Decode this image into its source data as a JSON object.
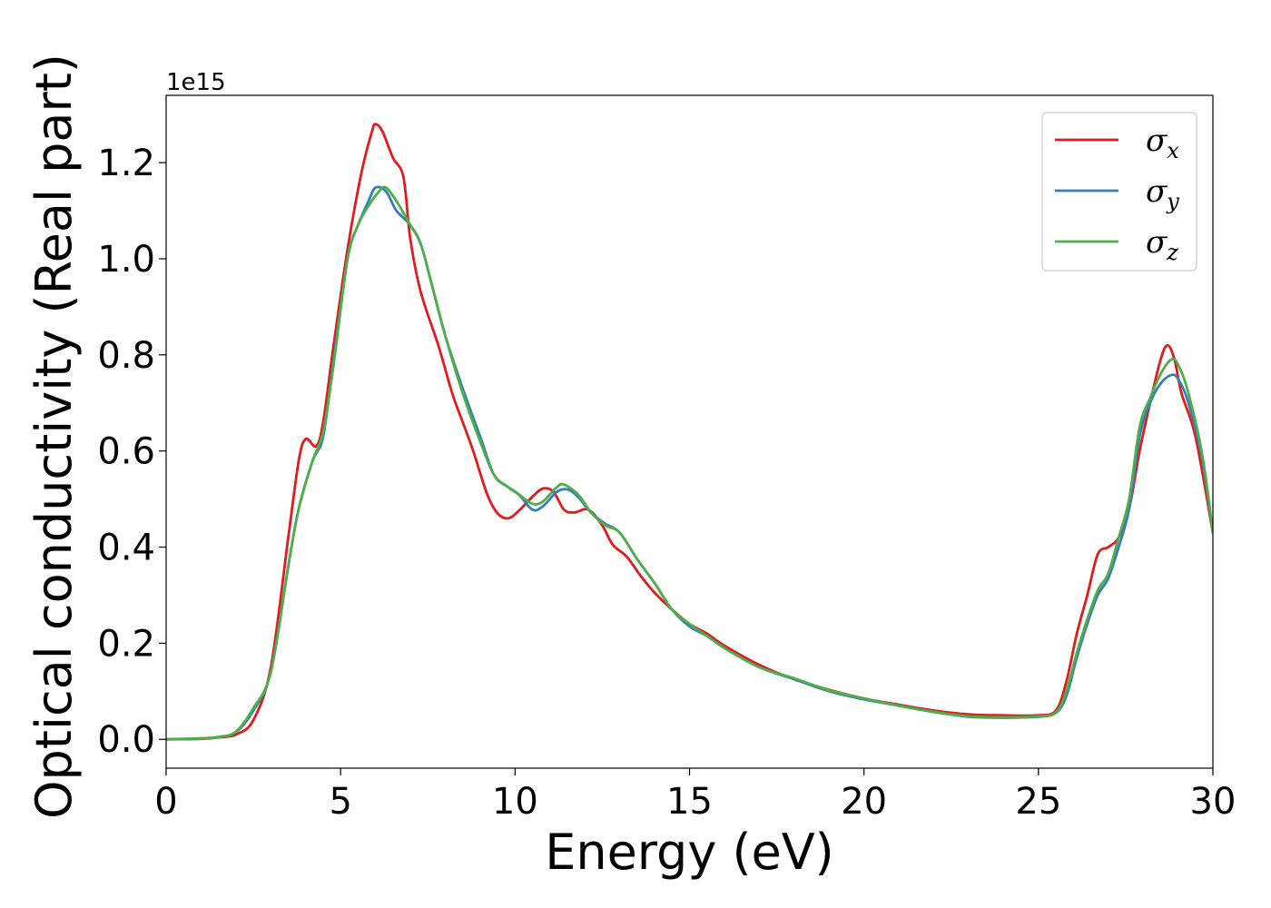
{
  "chart_data": {
    "type": "line",
    "xlabel": "Energy (eV)",
    "ylabel": "Optical conductivity (Real part)",
    "y_offset_label": "1e15",
    "xlim": [
      0,
      30
    ],
    "ylim": [
      -0.06,
      1.34
    ],
    "xticks": [
      0,
      5,
      10,
      15,
      20,
      25,
      30
    ],
    "xtick_labels": [
      "0",
      "5",
      "10",
      "15",
      "20",
      "25",
      "30"
    ],
    "yticks": [
      0.0,
      0.2,
      0.4,
      0.6,
      0.8,
      1.0,
      1.2
    ],
    "ytick_labels": [
      "0.0",
      "0.2",
      "0.4",
      "0.6",
      "0.8",
      "1.0",
      "1.2"
    ],
    "grid": false,
    "legend_position": "top-right",
    "series": [
      {
        "name": "σx",
        "name_base": "σ",
        "name_sub": "x",
        "color": "#e41a1c",
        "points": [
          [
            0,
            0
          ],
          [
            1,
            0.001
          ],
          [
            1.5,
            0.004
          ],
          [
            2,
            0.01
          ],
          [
            2.5,
            0.04
          ],
          [
            3,
            0.15
          ],
          [
            3.5,
            0.42
          ],
          [
            3.8,
            0.58
          ],
          [
            4.0,
            0.625
          ],
          [
            4.3,
            0.61
          ],
          [
            4.5,
            0.66
          ],
          [
            4.8,
            0.82
          ],
          [
            5.2,
            1.02
          ],
          [
            5.6,
            1.18
          ],
          [
            5.9,
            1.265
          ],
          [
            6.0,
            1.28
          ],
          [
            6.2,
            1.265
          ],
          [
            6.5,
            1.21
          ],
          [
            6.8,
            1.17
          ],
          [
            7.0,
            1.04
          ],
          [
            7.3,
            0.93
          ],
          [
            7.8,
            0.82
          ],
          [
            8.2,
            0.72
          ],
          [
            8.5,
            0.66
          ],
          [
            8.8,
            0.6
          ],
          [
            9.2,
            0.51
          ],
          [
            9.5,
            0.47
          ],
          [
            9.8,
            0.46
          ],
          [
            10.1,
            0.475
          ],
          [
            10.5,
            0.505
          ],
          [
            10.8,
            0.522
          ],
          [
            11.1,
            0.515
          ],
          [
            11.4,
            0.478
          ],
          [
            11.7,
            0.472
          ],
          [
            12.1,
            0.478
          ],
          [
            12.5,
            0.445
          ],
          [
            12.8,
            0.405
          ],
          [
            13.2,
            0.38
          ],
          [
            13.6,
            0.34
          ],
          [
            14.0,
            0.305
          ],
          [
            14.5,
            0.27
          ],
          [
            15.0,
            0.24
          ],
          [
            15.5,
            0.22
          ],
          [
            16.0,
            0.195
          ],
          [
            17.0,
            0.155
          ],
          [
            18.0,
            0.125
          ],
          [
            19.0,
            0.103
          ],
          [
            20.0,
            0.085
          ],
          [
            21.0,
            0.072
          ],
          [
            22.0,
            0.06
          ],
          [
            23.0,
            0.052
          ],
          [
            24.0,
            0.05
          ],
          [
            25.0,
            0.05
          ],
          [
            25.5,
            0.06
          ],
          [
            25.8,
            0.12
          ],
          [
            26.1,
            0.22
          ],
          [
            26.4,
            0.3
          ],
          [
            26.7,
            0.385
          ],
          [
            27.0,
            0.4
          ],
          [
            27.3,
            0.42
          ],
          [
            27.6,
            0.48
          ],
          [
            27.9,
            0.6
          ],
          [
            28.2,
            0.7
          ],
          [
            28.5,
            0.79
          ],
          [
            28.7,
            0.82
          ],
          [
            28.9,
            0.79
          ],
          [
            29.1,
            0.72
          ],
          [
            29.5,
            0.63
          ],
          [
            30.0,
            0.43
          ]
        ]
      },
      {
        "name": "σy",
        "name_base": "σ",
        "name_sub": "y",
        "color": "#377eb8",
        "points": [
          [
            0,
            0
          ],
          [
            1,
            0.002
          ],
          [
            1.5,
            0.005
          ],
          [
            2,
            0.015
          ],
          [
            2.5,
            0.06
          ],
          [
            3,
            0.14
          ],
          [
            3.5,
            0.36
          ],
          [
            3.8,
            0.48
          ],
          [
            4.2,
            0.58
          ],
          [
            4.5,
            0.63
          ],
          [
            4.8,
            0.79
          ],
          [
            5.2,
            1.0
          ],
          [
            5.5,
            1.07
          ],
          [
            5.8,
            1.12
          ],
          [
            6.0,
            1.148
          ],
          [
            6.3,
            1.14
          ],
          [
            6.6,
            1.1
          ],
          [
            7.0,
            1.07
          ],
          [
            7.3,
            1.03
          ],
          [
            7.6,
            0.95
          ],
          [
            8.0,
            0.84
          ],
          [
            8.5,
            0.73
          ],
          [
            9.0,
            0.63
          ],
          [
            9.4,
            0.55
          ],
          [
            9.8,
            0.525
          ],
          [
            10.1,
            0.51
          ],
          [
            10.5,
            0.478
          ],
          [
            10.8,
            0.485
          ],
          [
            11.2,
            0.515
          ],
          [
            11.5,
            0.52
          ],
          [
            11.8,
            0.505
          ],
          [
            12.2,
            0.47
          ],
          [
            12.6,
            0.448
          ],
          [
            13.0,
            0.43
          ],
          [
            13.5,
            0.375
          ],
          [
            14.0,
            0.325
          ],
          [
            14.5,
            0.27
          ],
          [
            15.0,
            0.235
          ],
          [
            15.5,
            0.215
          ],
          [
            16.0,
            0.19
          ],
          [
            17.0,
            0.15
          ],
          [
            18.0,
            0.125
          ],
          [
            19.0,
            0.1
          ],
          [
            20.0,
            0.083
          ],
          [
            21.0,
            0.07
          ],
          [
            22.0,
            0.057
          ],
          [
            23.0,
            0.047
          ],
          [
            24.0,
            0.045
          ],
          [
            25.0,
            0.047
          ],
          [
            25.5,
            0.055
          ],
          [
            25.8,
            0.09
          ],
          [
            26.1,
            0.17
          ],
          [
            26.4,
            0.24
          ],
          [
            26.7,
            0.3
          ],
          [
            27.0,
            0.335
          ],
          [
            27.3,
            0.4
          ],
          [
            27.6,
            0.48
          ],
          [
            27.9,
            0.63
          ],
          [
            28.2,
            0.7
          ],
          [
            28.5,
            0.74
          ],
          [
            28.8,
            0.758
          ],
          [
            29.0,
            0.75
          ],
          [
            29.3,
            0.7
          ],
          [
            29.7,
            0.58
          ],
          [
            30.0,
            0.43
          ]
        ]
      },
      {
        "name": "σz",
        "name_base": "σ",
        "name_sub": "z",
        "color": "#4daf4a",
        "points": [
          [
            0,
            0
          ],
          [
            1,
            0.002
          ],
          [
            1.5,
            0.005
          ],
          [
            2,
            0.016
          ],
          [
            2.5,
            0.065
          ],
          [
            3,
            0.14
          ],
          [
            3.5,
            0.36
          ],
          [
            3.8,
            0.48
          ],
          [
            4.2,
            0.58
          ],
          [
            4.5,
            0.64
          ],
          [
            4.8,
            0.78
          ],
          [
            5.2,
            1.0
          ],
          [
            5.5,
            1.07
          ],
          [
            5.8,
            1.11
          ],
          [
            6.1,
            1.14
          ],
          [
            6.3,
            1.148
          ],
          [
            6.6,
            1.12
          ],
          [
            7.0,
            1.07
          ],
          [
            7.3,
            1.03
          ],
          [
            7.6,
            0.95
          ],
          [
            8.0,
            0.84
          ],
          [
            8.5,
            0.72
          ],
          [
            9.0,
            0.62
          ],
          [
            9.4,
            0.55
          ],
          [
            9.8,
            0.525
          ],
          [
            10.1,
            0.51
          ],
          [
            10.5,
            0.49
          ],
          [
            10.8,
            0.495
          ],
          [
            11.2,
            0.525
          ],
          [
            11.4,
            0.53
          ],
          [
            11.8,
            0.51
          ],
          [
            12.2,
            0.47
          ],
          [
            12.6,
            0.445
          ],
          [
            13.0,
            0.43
          ],
          [
            13.5,
            0.375
          ],
          [
            14.0,
            0.325
          ],
          [
            14.5,
            0.27
          ],
          [
            15.0,
            0.24
          ],
          [
            15.5,
            0.215
          ],
          [
            16.0,
            0.19
          ],
          [
            17.0,
            0.15
          ],
          [
            18.0,
            0.127
          ],
          [
            19.0,
            0.102
          ],
          [
            20.0,
            0.085
          ],
          [
            21.0,
            0.07
          ],
          [
            22.0,
            0.057
          ],
          [
            23.0,
            0.048
          ],
          [
            24.0,
            0.046
          ],
          [
            25.0,
            0.048
          ],
          [
            25.5,
            0.056
          ],
          [
            25.8,
            0.1
          ],
          [
            26.1,
            0.18
          ],
          [
            26.4,
            0.25
          ],
          [
            26.7,
            0.31
          ],
          [
            27.0,
            0.345
          ],
          [
            27.3,
            0.42
          ],
          [
            27.6,
            0.5
          ],
          [
            27.9,
            0.65
          ],
          [
            28.2,
            0.71
          ],
          [
            28.5,
            0.76
          ],
          [
            28.8,
            0.79
          ],
          [
            29.0,
            0.78
          ],
          [
            29.3,
            0.72
          ],
          [
            29.7,
            0.59
          ],
          [
            30.0,
            0.43
          ]
        ]
      }
    ]
  }
}
